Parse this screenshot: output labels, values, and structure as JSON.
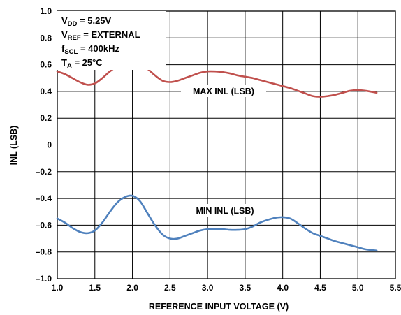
{
  "chart_data": {
    "type": "line",
    "xlabel": "REFERENCE INPUT VOLTAGE (V)",
    "ylabel": "INL (LSB)",
    "xlim": [
      1.0,
      5.5
    ],
    "ylim": [
      -1.0,
      1.0
    ],
    "xticks": [
      "1.0",
      "1.5",
      "2.0",
      "2.5",
      "3.0",
      "3.5",
      "4.0",
      "4.5",
      "5.0",
      "5.5"
    ],
    "yticks": [
      "1.0",
      "0.8",
      "0.6",
      "0.4",
      "0.2",
      "0",
      "–0.2",
      "–0.4",
      "–0.6",
      "–0.8",
      "–1.0"
    ],
    "grid": true,
    "conditions": [
      {
        "main": "V",
        "sub": "DD",
        "rest": " = 5.25V"
      },
      {
        "main": "V",
        "sub": "REF",
        "rest": " = EXTERNAL"
      },
      {
        "main": "f",
        "sub": "SCL",
        "rest": " = 400kHz"
      },
      {
        "main": "T",
        "sub": "A",
        "rest": " = 25°C"
      }
    ],
    "series": [
      {
        "name": "MAX INL (LSB)",
        "color": "#c0504d",
        "x": [
          1.0,
          1.1,
          1.2,
          1.3,
          1.4,
          1.5,
          1.6,
          1.7,
          1.8,
          1.9,
          2.0,
          2.1,
          2.2,
          2.3,
          2.4,
          2.5,
          2.6,
          2.7,
          2.8,
          2.9,
          3.0,
          3.1,
          3.2,
          3.3,
          3.4,
          3.5,
          3.6,
          3.7,
          3.8,
          3.9,
          4.0,
          4.1,
          4.2,
          4.3,
          4.4,
          4.5,
          4.6,
          4.7,
          4.8,
          4.9,
          5.0,
          5.1,
          5.25
        ],
        "y": [
          0.55,
          0.53,
          0.5,
          0.47,
          0.45,
          0.46,
          0.5,
          0.55,
          0.59,
          0.62,
          0.63,
          0.61,
          0.57,
          0.52,
          0.48,
          0.47,
          0.48,
          0.5,
          0.52,
          0.54,
          0.55,
          0.55,
          0.545,
          0.535,
          0.52,
          0.51,
          0.5,
          0.485,
          0.47,
          0.455,
          0.44,
          0.425,
          0.405,
          0.385,
          0.365,
          0.36,
          0.365,
          0.375,
          0.39,
          0.405,
          0.41,
          0.405,
          0.39
        ]
      },
      {
        "name": "MIN INL (LSB)",
        "color": "#4f81bd",
        "x": [
          1.0,
          1.1,
          1.2,
          1.3,
          1.4,
          1.5,
          1.6,
          1.7,
          1.8,
          1.9,
          2.0,
          2.1,
          2.2,
          2.3,
          2.4,
          2.5,
          2.6,
          2.7,
          2.8,
          2.9,
          3.0,
          3.1,
          3.2,
          3.3,
          3.4,
          3.5,
          3.6,
          3.7,
          3.8,
          3.9,
          4.0,
          4.1,
          4.2,
          4.3,
          4.4,
          4.5,
          4.6,
          4.7,
          4.8,
          4.9,
          5.0,
          5.1,
          5.25
        ],
        "y": [
          -0.55,
          -0.58,
          -0.62,
          -0.65,
          -0.66,
          -0.64,
          -0.58,
          -0.5,
          -0.43,
          -0.39,
          -0.38,
          -0.42,
          -0.51,
          -0.6,
          -0.67,
          -0.7,
          -0.7,
          -0.68,
          -0.66,
          -0.64,
          -0.63,
          -0.63,
          -0.63,
          -0.635,
          -0.635,
          -0.63,
          -0.61,
          -0.58,
          -0.56,
          -0.545,
          -0.54,
          -0.55,
          -0.585,
          -0.625,
          -0.66,
          -0.68,
          -0.7,
          -0.72,
          -0.735,
          -0.75,
          -0.765,
          -0.78,
          -0.79
        ]
      }
    ]
  }
}
